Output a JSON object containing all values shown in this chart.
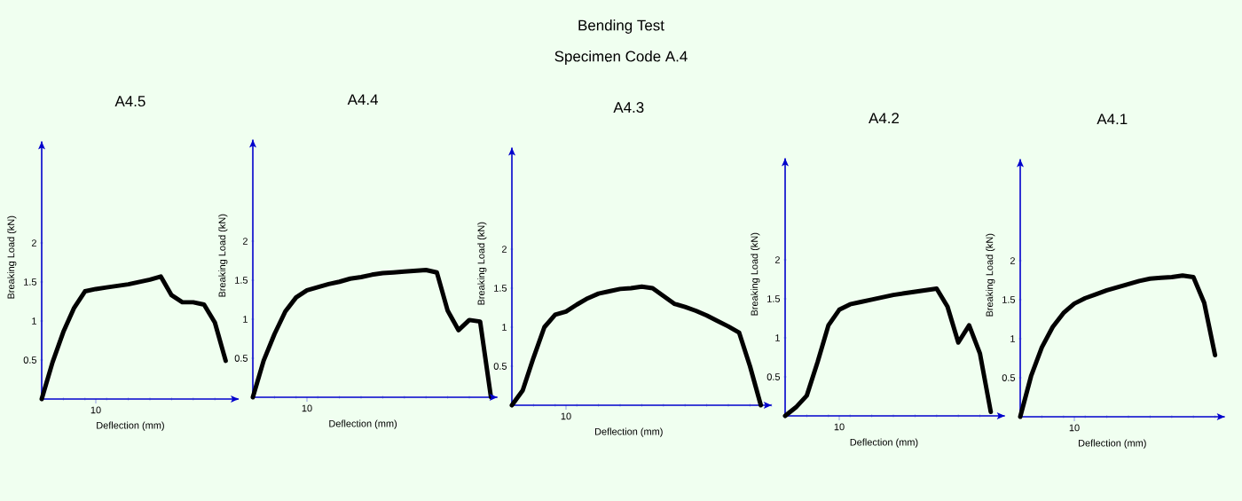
{
  "chart_data": [
    {
      "type": "other",
      "title": "Bending Test",
      "subtitle": "Specimen Code A.4"
    },
    {
      "type": "line",
      "title": "A4.5",
      "xlabel": "Deflection (mm)",
      "ylabel": "Breaking Load (kN)",
      "ylim": [
        0,
        3.3
      ],
      "yticks": [
        0.5,
        1,
        1.5,
        2
      ],
      "marker": "none",
      "annotations": [
        "10"
      ],
      "categories": [
        null,
        null,
        null,
        null,
        null,
        null,
        null,
        null,
        null,
        null,
        null,
        null,
        null,
        null,
        null,
        null,
        null,
        null
      ],
      "series": [
        {
          "color": "#000000",
          "values": [
            0,
            0.47,
            0.86,
            1.17,
            1.38,
            1.41,
            1.43,
            1.45,
            1.47,
            1.5,
            1.53,
            1.57,
            1.33,
            1.24,
            1.24,
            1.21,
            0.98,
            0.49
          ]
        }
      ]
    },
    {
      "type": "line",
      "title": "A4.4",
      "xlabel": "Deflection (mm)",
      "ylabel": "Breaking Load (kN)",
      "ylim": [
        0,
        3.3
      ],
      "yticks": [
        0.5,
        1,
        1.5,
        2
      ],
      "marker": "none",
      "annotations": [
        "10"
      ],
      "categories": [
        null,
        null,
        null,
        null,
        null,
        null,
        null,
        null,
        null,
        null,
        null,
        null,
        null,
        null,
        null,
        null,
        null,
        null,
        null,
        null,
        null,
        null,
        null
      ],
      "series": [
        {
          "color": "#000000",
          "values": [
            0,
            0.47,
            0.81,
            1.1,
            1.28,
            1.37,
            1.41,
            1.45,
            1.48,
            1.52,
            1.54,
            1.57,
            1.59,
            1.6,
            1.61,
            1.62,
            1.63,
            1.6,
            1.11,
            0.86,
            0.99,
            0.97,
            0
          ]
        }
      ]
    },
    {
      "type": "line",
      "title": "A4.3",
      "xlabel": "Deflection (mm)",
      "ylabel": "Breaking Load (kN)",
      "ylim": [
        0,
        3.3
      ],
      "yticks": [
        0.5,
        1,
        1.5,
        2
      ],
      "marker": "none",
      "annotations": [
        "10"
      ],
      "categories": [
        null,
        null,
        null,
        null,
        null,
        null,
        null,
        null,
        null,
        null,
        null,
        null,
        null,
        null,
        null,
        null,
        null,
        null,
        null,
        null,
        null,
        null,
        null,
        null
      ],
      "series": [
        {
          "color": "#000000",
          "values": [
            0,
            0.19,
            0.61,
            1.0,
            1.16,
            1.2,
            1.29,
            1.37,
            1.43,
            1.46,
            1.49,
            1.5,
            1.52,
            1.5,
            1.4,
            1.3,
            1.26,
            1.21,
            1.15,
            1.08,
            1.01,
            0.93,
            0.5,
            0
          ]
        }
      ]
    },
    {
      "type": "line",
      "title": "A4.2",
      "xlabel": "Deflection (mm)",
      "ylabel": "Breaking Load (kN)",
      "ylim": [
        0,
        3.3
      ],
      "yticks": [
        0.5,
        1,
        1.5,
        2
      ],
      "marker": "none",
      "annotations": [
        "10"
      ],
      "categories": [
        null,
        null,
        null,
        null,
        null,
        null,
        null,
        null,
        null,
        null,
        null,
        null,
        null,
        null,
        null,
        null,
        null,
        null,
        null,
        null
      ],
      "series": [
        {
          "color": "#000000",
          "values": [
            0,
            0.11,
            0.26,
            0.69,
            1.16,
            1.36,
            1.43,
            1.46,
            1.49,
            1.52,
            1.55,
            1.57,
            1.59,
            1.61,
            1.63,
            1.4,
            0.94,
            1.16,
            0.8,
            0.05
          ]
        }
      ]
    },
    {
      "type": "line",
      "title": "A4.1",
      "xlabel": "Deflection (mm)",
      "ylabel": "Breaking Load (kN)",
      "ylim": [
        0,
        3.3
      ],
      "yticks": [
        0.5,
        1,
        1.5,
        2
      ],
      "marker": "none",
      "annotations": [
        "10"
      ],
      "categories": [
        null,
        null,
        null,
        null,
        null,
        null,
        null,
        null,
        null,
        null,
        null,
        null,
        null,
        null,
        null,
        null,
        null,
        null,
        null
      ],
      "series": [
        {
          "color": "#000000",
          "values": [
            0,
            0.52,
            0.89,
            1.15,
            1.33,
            1.45,
            1.52,
            1.57,
            1.62,
            1.66,
            1.7,
            1.74,
            1.77,
            1.78,
            1.79,
            1.81,
            1.79,
            1.46,
            0.79
          ]
        }
      ]
    }
  ]
}
